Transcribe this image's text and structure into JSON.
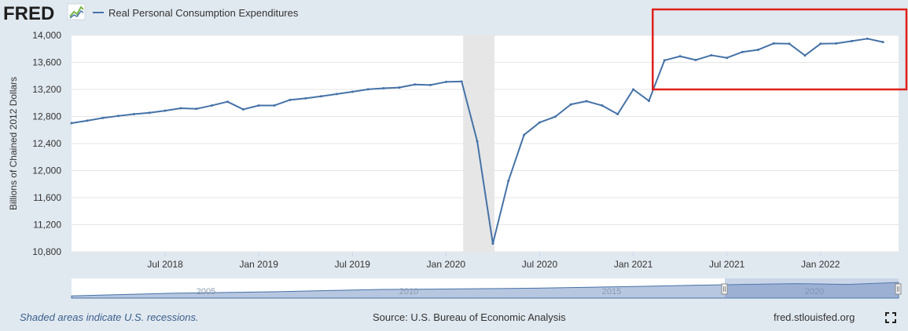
{
  "header": {
    "logo_text": "FRED",
    "legend_label": "Real Personal Consumption Expenditures"
  },
  "footer": {
    "recession_note": "Shaded areas indicate U.S. recessions.",
    "source": "Source: U.S. Bureau of Economic Analysis",
    "site": "fred.stlouisfed.org"
  },
  "colors": {
    "series": "#4572a7",
    "highlight": "#e0201b",
    "background": "#e1e9f0",
    "recession": "#e6e6e6",
    "navigator_fill": "#7e99c6"
  },
  "chart_data": {
    "type": "line",
    "title": "Real Personal Consumption Expenditures",
    "xlabel": "",
    "ylabel": "Billions of Chained 2012 Dollars",
    "ylim": [
      10800,
      14000
    ],
    "yticks": [
      10800,
      11200,
      11600,
      12000,
      12400,
      12800,
      13200,
      13600,
      14000
    ],
    "ytick_labels": [
      "10,800",
      "11,200",
      "11,600",
      "12,000",
      "12,400",
      "12,800",
      "13,200",
      "13,600",
      "14,000"
    ],
    "xticks": [
      {
        "month": 6,
        "label": "Jul 2018"
      },
      {
        "month": 12,
        "label": "Jan 2019"
      },
      {
        "month": 18,
        "label": "Jul 2019"
      },
      {
        "month": 24,
        "label": "Jan 2020"
      },
      {
        "month": 30,
        "label": "Jul 2020"
      },
      {
        "month": 36,
        "label": "Jan 2021"
      },
      {
        "month": 42,
        "label": "Jul 2021"
      },
      {
        "month": 48,
        "label": "Jan 2022"
      }
    ],
    "x_start": "Jan 2018",
    "x_range_months": [
      0,
      53
    ],
    "recession": [
      25.1,
      27.1
    ],
    "series": [
      {
        "name": "Real Personal Consumption Expenditures",
        "values": [
          12701,
          12738,
          12778,
          12808,
          12835,
          12855,
          12885,
          12922,
          12913,
          12963,
          13018,
          12905,
          12962,
          12963,
          13045,
          13068,
          13098,
          13132,
          13165,
          13202,
          13218,
          13228,
          13272,
          13265,
          13311,
          13318,
          12432,
          10920,
          11850,
          12528,
          12712,
          12797,
          12978,
          13026,
          12962,
          12835,
          13200,
          13031,
          13630,
          13690,
          13635,
          13705,
          13667,
          13754,
          13786,
          13880,
          13875,
          13702,
          13875,
          13880,
          13915,
          13950,
          13900
        ]
      }
    ],
    "highlight_box": {
      "label": "Red rectangle highlighting Mar 2021 to Jun 2022"
    },
    "navigator": {
      "labels": [
        "2005",
        "2010",
        "2015",
        "2020"
      ],
      "series": [
        8790,
        9280,
        9750,
        10000,
        10290,
        10720,
        11100,
        11200,
        11380,
        11580,
        11900,
        12200,
        12600,
        12900,
        13200,
        12900,
        13600
      ]
    }
  }
}
